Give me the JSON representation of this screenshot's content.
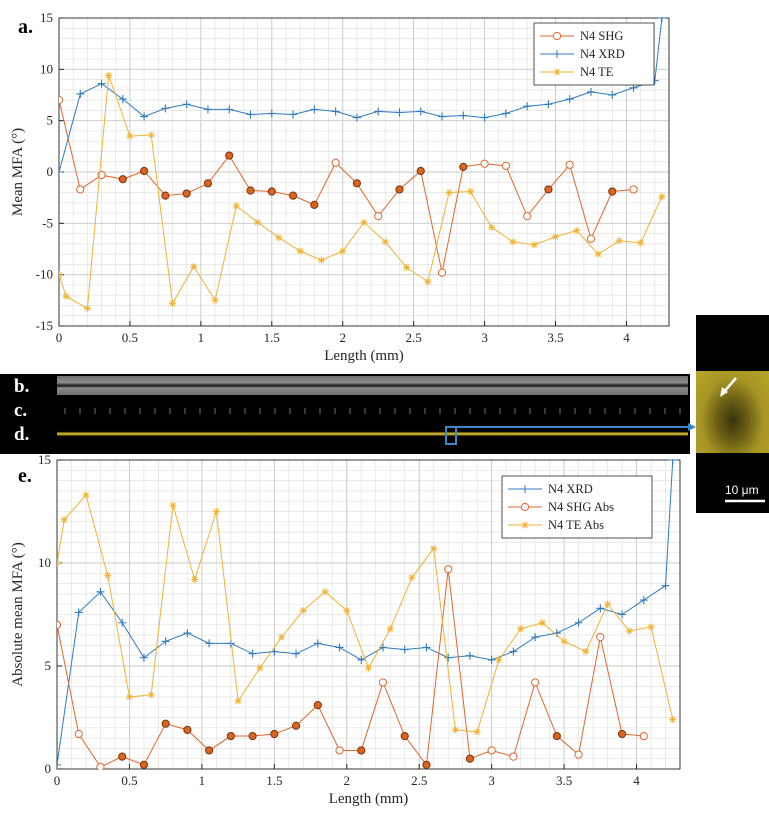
{
  "panels": {
    "a": "a.",
    "b": "b.",
    "c": "c.",
    "d": "d.",
    "e": "e."
  },
  "inset": {
    "scale_label": "10 μm",
    "color": "#b5a21e"
  },
  "colors": {
    "xrd": "#2f7bbf",
    "shg": "#e0662c",
    "te": "#f2b233",
    "shg_fill": "#d9651f"
  },
  "chart_data": [
    {
      "type": "line",
      "xlabel": "Length (mm)",
      "ylabel": "Mean MFA (°)",
      "xlim": [
        0,
        4.3
      ],
      "ylim": [
        -15,
        15
      ],
      "xticks": [
        0,
        0.5,
        1,
        1.5,
        2,
        2.5,
        3,
        3.5,
        4
      ],
      "yticks": [
        -15,
        -10,
        -5,
        0,
        5,
        10,
        15
      ],
      "grid": true,
      "legend_position": "top-right",
      "series": [
        {
          "name": "N4 SHG",
          "marker": "circle",
          "x": [
            0,
            0.15,
            0.3,
            0.45,
            0.6,
            0.75,
            0.9,
            1.05,
            1.2,
            1.35,
            1.5,
            1.65,
            1.8,
            1.95,
            2.1,
            2.25,
            2.4,
            2.55,
            2.7,
            2.85,
            3,
            3.15,
            3.3,
            3.45,
            3.6,
            3.75,
            3.9,
            4.05
          ],
          "y": [
            7,
            -1.7,
            -0.3,
            -0.7,
            0.1,
            -2.3,
            -2.1,
            -1.1,
            1.6,
            -1.8,
            -1.9,
            -2.3,
            -3.2,
            0.9,
            -1.1,
            -4.3,
            -1.7,
            0.1,
            -9.8,
            0.5,
            0.8,
            0.6,
            -4.3,
            -1.7,
            0.7,
            -6.5,
            -1.9,
            -1.7
          ],
          "filled": [
            false,
            false,
            false,
            true,
            true,
            true,
            true,
            true,
            true,
            true,
            true,
            true,
            true,
            false,
            true,
            false,
            true,
            true,
            false,
            true,
            false,
            false,
            false,
            true,
            false,
            false,
            true,
            false
          ]
        },
        {
          "name": "N4 XRD",
          "marker": "plus",
          "x": [
            0,
            0.15,
            0.3,
            0.45,
            0.6,
            0.75,
            0.9,
            1.05,
            1.2,
            1.35,
            1.5,
            1.65,
            1.8,
            1.95,
            2.1,
            2.25,
            2.4,
            2.55,
            2.7,
            2.85,
            3,
            3.15,
            3.3,
            3.45,
            3.6,
            3.75,
            3.9,
            4.05,
            4.2,
            4.25
          ],
          "y": [
            0,
            7.6,
            8.6,
            7.1,
            5.4,
            6.2,
            6.6,
            6.1,
            6.1,
            5.6,
            5.7,
            5.6,
            6.1,
            5.9,
            5.3,
            5.9,
            5.8,
            5.9,
            5.4,
            5.5,
            5.3,
            5.7,
            6.4,
            6.6,
            7.1,
            7.8,
            7.5,
            8.2,
            8.9,
            15
          ]
        },
        {
          "name": "N4 TE",
          "marker": "asterisk",
          "x": [
            0,
            0.05,
            0.2,
            0.35,
            0.5,
            0.65,
            0.8,
            0.95,
            1.1,
            1.25,
            1.4,
            1.55,
            1.7,
            1.85,
            2,
            2.15,
            2.3,
            2.45,
            2.6,
            2.75,
            2.9,
            3.05,
            3.2,
            3.35,
            3.5,
            3.65,
            3.8,
            3.95,
            4.1,
            4.25
          ],
          "y": [
            -10,
            -12.1,
            -13.3,
            9.4,
            3.5,
            3.6,
            -12.8,
            -9.2,
            -12.5,
            -3.3,
            -4.9,
            -6.4,
            -7.7,
            -8.6,
            -7.7,
            -4.9,
            -6.8,
            -9.3,
            -10.7,
            -2,
            -1.9,
            -5.4,
            -6.8,
            -7.1,
            -6.3,
            -5.7,
            -8,
            -6.7,
            -6.9,
            -2.4
          ]
        }
      ]
    },
    {
      "type": "line",
      "xlabel": "Length (mm)",
      "ylabel": "Absolute mean MFA (°)",
      "xlim": [
        0,
        4.3
      ],
      "ylim": [
        0,
        15
      ],
      "xticks": [
        0,
        0.5,
        1,
        1.5,
        2,
        2.5,
        3,
        3.5,
        4
      ],
      "yticks": [
        0,
        5,
        10,
        15
      ],
      "grid": true,
      "legend_position": "top-right",
      "series": [
        {
          "name": "N4 XRD",
          "marker": "plus",
          "x": [
            0,
            0.15,
            0.3,
            0.45,
            0.6,
            0.75,
            0.9,
            1.05,
            1.2,
            1.35,
            1.5,
            1.65,
            1.8,
            1.95,
            2.1,
            2.25,
            2.4,
            2.55,
            2.7,
            2.85,
            3,
            3.15,
            3.3,
            3.45,
            3.6,
            3.75,
            3.9,
            4.05,
            4.2,
            4.25
          ],
          "y": [
            0.2,
            7.6,
            8.6,
            7.1,
            5.4,
            6.2,
            6.6,
            6.1,
            6.1,
            5.6,
            5.7,
            5.6,
            6.1,
            5.9,
            5.3,
            5.9,
            5.8,
            5.9,
            5.4,
            5.5,
            5.3,
            5.7,
            6.4,
            6.6,
            7.1,
            7.8,
            7.5,
            8.2,
            8.9,
            15
          ]
        },
        {
          "name": "N4 SHG Abs",
          "marker": "circle",
          "x": [
            0,
            0.15,
            0.3,
            0.45,
            0.6,
            0.75,
            0.9,
            1.05,
            1.2,
            1.35,
            1.5,
            1.65,
            1.8,
            1.95,
            2.1,
            2.25,
            2.4,
            2.55,
            2.7,
            2.85,
            3,
            3.15,
            3.3,
            3.45,
            3.6,
            3.75,
            3.9,
            4.05
          ],
          "y": [
            7,
            1.7,
            0.1,
            0.6,
            0.2,
            2.2,
            1.9,
            0.9,
            1.6,
            1.6,
            1.7,
            2.1,
            3.1,
            0.9,
            0.9,
            4.2,
            1.6,
            0.2,
            9.7,
            0.5,
            0.9,
            0.6,
            4.2,
            1.6,
            0.7,
            6.4,
            1.7,
            1.6
          ],
          "filled": [
            false,
            false,
            false,
            true,
            true,
            true,
            true,
            true,
            true,
            true,
            true,
            true,
            true,
            false,
            true,
            false,
            true,
            true,
            false,
            true,
            false,
            false,
            false,
            true,
            false,
            false,
            true,
            false
          ]
        },
        {
          "name": "N4 TE Abs",
          "marker": "asterisk",
          "x": [
            0,
            0.05,
            0.2,
            0.35,
            0.5,
            0.65,
            0.8,
            0.95,
            1.1,
            1.25,
            1.4,
            1.55,
            1.7,
            1.85,
            2,
            2.15,
            2.3,
            2.45,
            2.6,
            2.75,
            2.9,
            3.05,
            3.2,
            3.35,
            3.5,
            3.65,
            3.8,
            3.95,
            4.1,
            4.25
          ],
          "y": [
            10,
            12.1,
            13.3,
            9.4,
            3.5,
            3.6,
            12.8,
            9.2,
            12.5,
            3.3,
            4.9,
            6.4,
            7.7,
            8.6,
            7.7,
            4.9,
            6.8,
            9.3,
            10.7,
            1.9,
            1.8,
            5.3,
            6.8,
            7.1,
            6.2,
            5.7,
            8,
            6.7,
            6.9,
            2.4
          ]
        }
      ]
    }
  ]
}
